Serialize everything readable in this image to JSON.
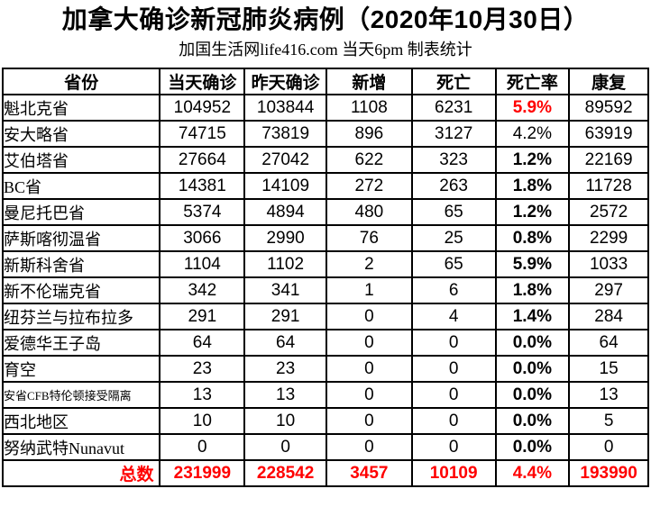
{
  "page": {
    "title": "加拿大确诊新冠肺炎病例（2020年10月30日）",
    "subtitle": "加国生活网life416.com 当天6pm 制表统计"
  },
  "colors": {
    "accent_red": "#ff0000",
    "text": "#000000",
    "border": "#000000"
  },
  "chart_data": {
    "type": "table",
    "title": "加拿大确诊新冠肺炎病例（2020年10月30日）",
    "subtitle": "加国生活网life416.com 当天6pm 制表统计",
    "columns": [
      "省份",
      "当天确诊",
      "昨天确诊",
      "新增",
      "死亡",
      "死亡率",
      "康复"
    ],
    "rows": [
      {
        "province": "魁北克省",
        "values": [
          "104952",
          "103844",
          "1108",
          "6231",
          "5.9%",
          "89592"
        ],
        "rate_style": "red-bold",
        "small_label": false
      },
      {
        "province": "安大略省",
        "values": [
          "74715",
          "73819",
          "896",
          "3127",
          "4.2%",
          "63919"
        ],
        "rate_style": "regular",
        "small_label": false
      },
      {
        "province": "艾伯塔省",
        "values": [
          "27664",
          "27042",
          "622",
          "323",
          "1.2%",
          "22169"
        ],
        "rate_style": "bold",
        "small_label": false
      },
      {
        "province": "BC省",
        "values": [
          "14381",
          "14109",
          "272",
          "263",
          "1.8%",
          "11728"
        ],
        "rate_style": "bold",
        "small_label": false
      },
      {
        "province": "曼尼托巴省",
        "values": [
          "5374",
          "4894",
          "480",
          "65",
          "1.2%",
          "2572"
        ],
        "rate_style": "bold",
        "small_label": false
      },
      {
        "province": "萨斯喀彻温省",
        "values": [
          "3066",
          "2990",
          "76",
          "25",
          "0.8%",
          "2299"
        ],
        "rate_style": "bold",
        "small_label": false
      },
      {
        "province": "新斯科舍省",
        "values": [
          "1104",
          "1102",
          "2",
          "65",
          "5.9%",
          "1033"
        ],
        "rate_style": "bold",
        "small_label": false
      },
      {
        "province": "新不伦瑞克省",
        "values": [
          "342",
          "341",
          "1",
          "6",
          "1.8%",
          "297"
        ],
        "rate_style": "bold",
        "small_label": false
      },
      {
        "province": "纽芬兰与拉布拉多",
        "values": [
          "291",
          "291",
          "0",
          "4",
          "1.4%",
          "284"
        ],
        "rate_style": "bold",
        "small_label": false
      },
      {
        "province": "爱德华王子岛",
        "values": [
          "64",
          "64",
          "0",
          "0",
          "0.0%",
          "64"
        ],
        "rate_style": "bold",
        "small_label": false
      },
      {
        "province": "育空",
        "values": [
          "23",
          "23",
          "0",
          "0",
          "0.0%",
          "15"
        ],
        "rate_style": "bold",
        "small_label": false
      },
      {
        "province": "安省CFB特伦顿接受隔离",
        "values": [
          "13",
          "13",
          "0",
          "0",
          "0.0%",
          "13"
        ],
        "rate_style": "bold",
        "small_label": true
      },
      {
        "province": "西北地区",
        "values": [
          "10",
          "10",
          "0",
          "0",
          "0.0%",
          "5"
        ],
        "rate_style": "bold",
        "small_label": false
      },
      {
        "province": "努纳武特Nunavut",
        "values": [
          "0",
          "0",
          "0",
          "0",
          "0.0%",
          "0"
        ],
        "rate_style": "bold",
        "small_label": false
      }
    ],
    "total": {
      "label": "总数",
      "values": [
        "231999",
        "228542",
        "3457",
        "10109",
        "4.4%",
        "193990"
      ]
    }
  }
}
